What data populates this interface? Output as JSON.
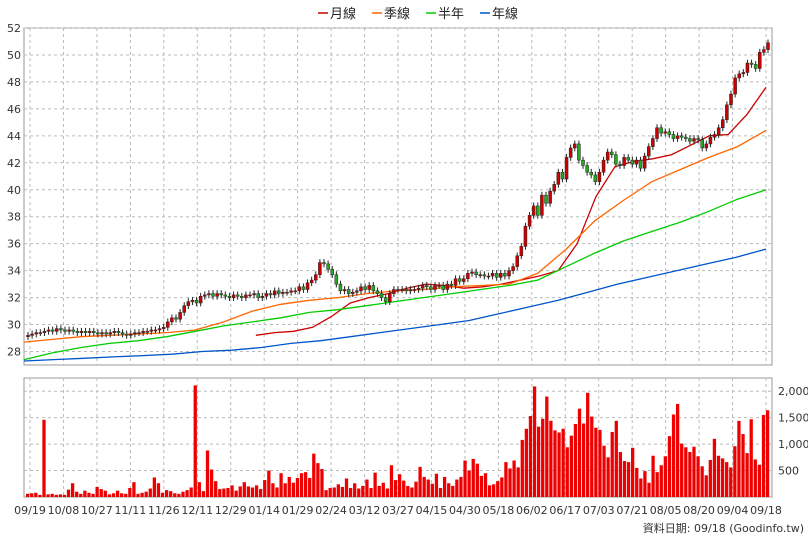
{
  "chart_data": [
    {
      "type": "candlestick+line",
      "legend": [
        {
          "label": "月線",
          "color": "#cc0000"
        },
        {
          "label": "季線",
          "color": "#ff6600"
        },
        {
          "label": "半年",
          "color": "#00cc00"
        },
        {
          "label": "年線",
          "color": "#0055cc"
        }
      ],
      "legend_placement": "top-center",
      "ylim": [
        27,
        52
      ],
      "y_ticks": [
        "28",
        "30",
        "32",
        "34",
        "36",
        "38",
        "40",
        "42",
        "44",
        "46",
        "48",
        "50",
        "52"
      ],
      "grid": true,
      "close_series": [
        29.2,
        29.3,
        29.4,
        29.4,
        29.5,
        29.6,
        29.5,
        29.7,
        29.6,
        29.5,
        29.6,
        29.5,
        29.4,
        29.5,
        29.4,
        29.5,
        29.4,
        29.3,
        29.4,
        29.3,
        29.4,
        29.5,
        29.4,
        29.3,
        29.2,
        29.3,
        29.4,
        29.4,
        29.5,
        29.5,
        29.6,
        29.6,
        29.7,
        29.8,
        30.2,
        30.5,
        30.4,
        30.9,
        31.4,
        31.7,
        31.8,
        31.6,
        32.1,
        32.2,
        32.3,
        32.1,
        32.3,
        32.2,
        32.1,
        32.0,
        32.2,
        32.1,
        32.0,
        32.2,
        32.2,
        32.3,
        32.0,
        32.1,
        32.3,
        32.2,
        32.5,
        32.3,
        32.4,
        32.4,
        32.5,
        32.5,
        32.8,
        32.6,
        33.1,
        33.3,
        33.7,
        34.6,
        34.5,
        34.1,
        33.7,
        33.0,
        32.5,
        32.6,
        32.3,
        32.4,
        32.5,
        32.8,
        32.6,
        32.9,
        32.5,
        32.3,
        32.0,
        31.7,
        32.3,
        32.6,
        32.6,
        32.6,
        32.5,
        32.6,
        32.6,
        32.7,
        32.9,
        32.8,
        32.6,
        32.9,
        32.9,
        32.6,
        33.0,
        32.9,
        33.4,
        33.2,
        33.4,
        33.8,
        33.9,
        33.7,
        33.7,
        33.6,
        33.6,
        33.8,
        33.5,
        33.8,
        33.6,
        34.0,
        34.3,
        35.1,
        35.8,
        37.3,
        38.1,
        38.8,
        38.1,
        39.6,
        39.0,
        39.9,
        40.4,
        41.3,
        40.8,
        42.4,
        43.1,
        43.4,
        42.2,
        41.8,
        41.3,
        41.1,
        40.6,
        41.3,
        42.2,
        42.8,
        42.6,
        41.9,
        41.8,
        42.4,
        42.2,
        41.9,
        42.2,
        41.6,
        42.5,
        43.2,
        43.8,
        44.6,
        44.2,
        44.3,
        44.1,
        43.8,
        44.0,
        43.9,
        43.8,
        43.6,
        43.8,
        43.7,
        43.1,
        43.4,
        43.9,
        44.1,
        44.6,
        45.2,
        46.3,
        47.1,
        48.3,
        48.6,
        48.7,
        49.4,
        49.3,
        49.0,
        50.2,
        50.4,
        50.9
      ],
      "ma_series": {
        "月線": {
          "start": 0.31,
          "values": [
            29.2,
            29.4,
            29.5,
            29.8,
            30.6,
            31.6,
            32.0,
            32.3,
            32.7,
            33.0,
            32.9,
            32.7,
            32.8,
            33.0,
            33.3,
            33.6,
            34.0,
            36.0,
            39.5,
            41.7,
            42.1,
            42.3,
            42.6,
            43.3,
            44.0,
            44.1,
            45.6,
            47.6
          ]
        },
        "季線": {
          "start": 0.0,
          "values": [
            28.7,
            28.9,
            29.1,
            29.2,
            29.3,
            29.4,
            29.6,
            30.2,
            31.0,
            31.5,
            31.8,
            32.0,
            32.3,
            32.5,
            32.6,
            32.8,
            32.9,
            33.0,
            33.8,
            35.6,
            37.7,
            39.2,
            40.6,
            41.5,
            42.4,
            43.2,
            44.4
          ]
        },
        "半年": {
          "start": 0.0,
          "values": [
            27.4,
            27.9,
            28.3,
            28.6,
            28.8,
            29.1,
            29.5,
            29.9,
            30.2,
            30.5,
            30.9,
            31.1,
            31.4,
            31.7,
            32.0,
            32.3,
            32.6,
            32.9,
            33.3,
            34.3,
            35.3,
            36.2,
            36.9,
            37.6,
            38.4,
            39.3,
            40.0
          ]
        },
        "年線": {
          "start": 0.0,
          "values": [
            27.3,
            27.4,
            27.5,
            27.6,
            27.7,
            27.8,
            28.0,
            28.1,
            28.3,
            28.6,
            28.8,
            29.1,
            29.4,
            29.7,
            30.0,
            30.3,
            30.8,
            31.3,
            31.8,
            32.4,
            33.0,
            33.5,
            34.0,
            34.5,
            35.0,
            35.6
          ]
        }
      }
    },
    {
      "type": "bar",
      "ylim": [
        0,
        2250
      ],
      "y_ticks": [
        "500",
        "1,000",
        "1,500",
        "2,000"
      ],
      "values": [
        60,
        70,
        80,
        40,
        1460,
        50,
        60,
        40,
        50,
        40,
        140,
        260,
        100,
        60,
        120,
        80,
        60,
        190,
        150,
        120,
        50,
        70,
        120,
        70,
        60,
        170,
        280,
        60,
        80,
        100,
        160,
        370,
        260,
        80,
        130,
        110,
        70,
        60,
        100,
        130,
        180,
        2110,
        280,
        110,
        880,
        520,
        300,
        150,
        160,
        170,
        220,
        120,
        200,
        280,
        200,
        180,
        220,
        150,
        320,
        500,
        260,
        180,
        450,
        260,
        380,
        270,
        360,
        450,
        470,
        360,
        820,
        640,
        530,
        130,
        170,
        180,
        240,
        190,
        350,
        170,
        260,
        160,
        210,
        330,
        170,
        460,
        210,
        270,
        160,
        600,
        320,
        430,
        310,
        210,
        180,
        290,
        570,
        380,
        330,
        250,
        440,
        170,
        380,
        260,
        210,
        330,
        380,
        690,
        500,
        720,
        630,
        400,
        450,
        220,
        240,
        300,
        370,
        660,
        540,
        690,
        560,
        1080,
        1290,
        1530,
        2090,
        1330,
        1480,
        1900,
        1440,
        1260,
        1220,
        1290,
        940,
        1160,
        1380,
        1670,
        1390,
        1970,
        1520,
        1310,
        1270,
        970,
        750,
        1230,
        1440,
        850,
        680,
        660,
        930,
        550,
        350,
        490,
        270,
        780,
        470,
        600,
        770,
        1150,
        1560,
        1760,
        1010,
        940,
        850,
        950,
        770,
        580,
        410,
        700,
        1100,
        780,
        730,
        660,
        560,
        960,
        1440,
        1190,
        830,
        1470,
        710,
        610,
        1550,
        1640
      ],
      "grid": true
    }
  ],
  "x_ticks": [
    "09/19",
    "10/08",
    "10/27",
    "11/11",
    "11/26",
    "12/11",
    "12/29",
    "01/14",
    "01/29",
    "02/24",
    "03/12",
    "03/27",
    "04/15",
    "04/30",
    "05/18",
    "06/02",
    "06/17",
    "07/03",
    "07/21",
    "08/05",
    "08/20",
    "09/04",
    "09/18"
  ],
  "footer": "資料日期: 09/18  (Goodinfo.tw)",
  "colors": {
    "up": "#cc0000",
    "down": "#22aa22",
    "volume": "#ee0000",
    "grid": "#bbbbbb",
    "frame": "#999999"
  }
}
